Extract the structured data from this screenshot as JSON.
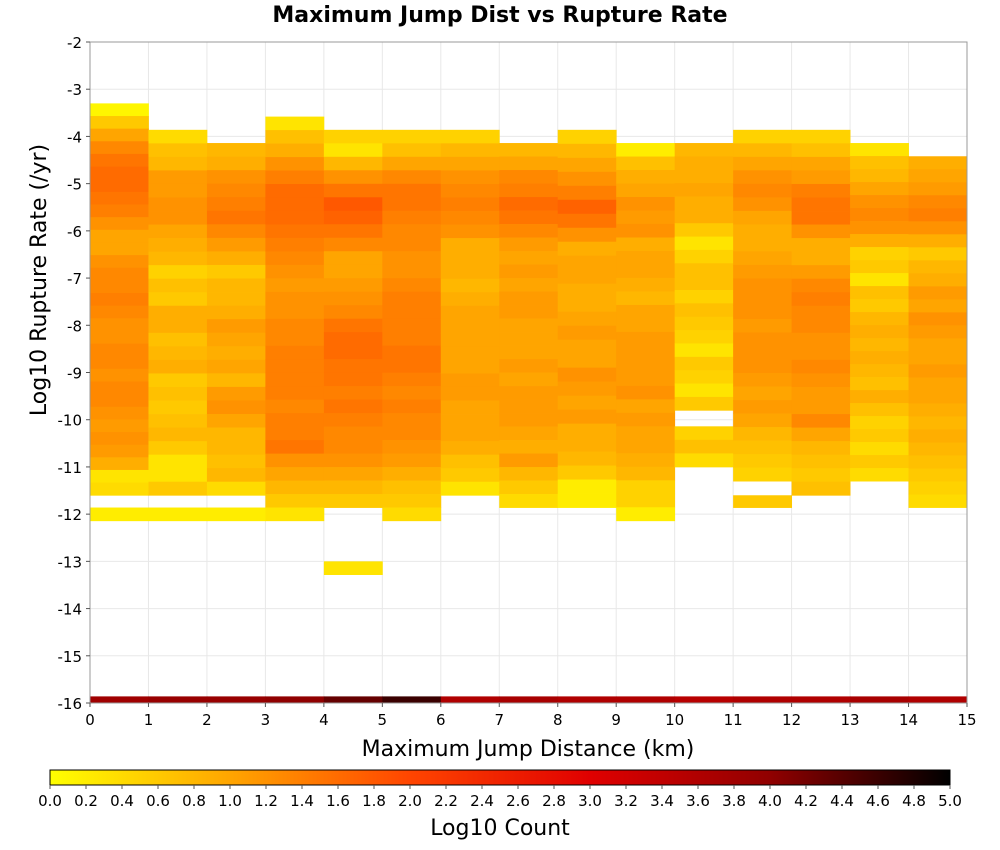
{
  "chart_data": {
    "type": "heatmap",
    "title": "Maximum Jump Dist vs Rupture Rate",
    "xlabel": "Maximum Jump Distance (km)",
    "ylabel": "Log10 Rupture Rate (/yr)",
    "xlim": [
      0,
      15
    ],
    "ylim": [
      -16,
      -2
    ],
    "x_ticks": [
      "0",
      "1",
      "2",
      "3",
      "4",
      "5",
      "6",
      "7",
      "8",
      "9",
      "10",
      "11",
      "12",
      "13",
      "14",
      "15"
    ],
    "y_ticks": [
      "-2",
      "-3",
      "-4",
      "-5",
      "-6",
      "-7",
      "-8",
      "-9",
      "-10",
      "-11",
      "-12",
      "-13",
      "-14",
      "-15",
      "-16"
    ],
    "grid": true,
    "x_bin_width": 1,
    "y_bin_width": 0.28,
    "colorbar": {
      "label": "Log10 Count",
      "range": [
        0,
        5
      ],
      "ticks": [
        "0.0",
        "0.2",
        "0.4",
        "0.6",
        "0.8",
        "1.0",
        "1.2",
        "1.4",
        "1.6",
        "1.8",
        "2.0",
        "2.2",
        "2.4",
        "2.6",
        "2.8",
        "3.0",
        "3.2",
        "3.4",
        "3.6",
        "3.8",
        "4.0",
        "4.2",
        "4.4",
        "4.6",
        "4.8",
        "5.0"
      ],
      "colors": [
        "#ffff00",
        "#ffa500",
        "#ff4500",
        "#e00000",
        "#900000",
        "#000000"
      ],
      "position": "bottom"
    },
    "columns": [
      {
        "x": 0,
        "y_top": -3.3,
        "y_bottom": -11.6,
        "values": [
          0.1,
          0.6,
          1.0,
          1.3,
          1.5,
          1.6,
          1.6,
          1.5,
          1.4,
          1.2,
          1.0,
          1.0,
          1.2,
          1.3,
          1.3,
          1.4,
          1.3,
          1.2,
          1.2,
          1.3,
          1.3,
          1.2,
          1.3,
          1.3,
          1.2,
          1.1,
          1.2,
          1.1,
          0.9,
          0.3,
          0.4
        ]
      },
      {
        "x": 0,
        "y_top": -11.86,
        "y_bottom": -12.14,
        "values": [
          0.2
        ]
      },
      {
        "x": 1,
        "y_top": -3.86,
        "y_bottom": -11.6,
        "values": [
          0.4,
          0.7,
          0.8,
          1.1,
          1.1,
          1.2,
          1.2,
          1.0,
          0.9,
          0.8,
          0.5,
          0.7,
          0.6,
          0.9,
          0.9,
          0.7,
          0.8,
          0.9,
          0.6,
          0.7,
          0.6,
          0.7,
          0.8,
          0.6,
          0.3,
          0.3,
          0.6
        ]
      },
      {
        "x": 1,
        "y_top": -11.86,
        "y_bottom": -12.14,
        "values": [
          0.2
        ]
      },
      {
        "x": 2,
        "y_top": -4.14,
        "y_bottom": -11.6,
        "values": [
          0.8,
          0.9,
          1.2,
          1.3,
          1.4,
          1.5,
          1.3,
          1.1,
          0.9,
          0.6,
          0.8,
          0.8,
          0.9,
          1.1,
          1.0,
          0.9,
          1.0,
          0.8,
          1.1,
          1.2,
          1.0,
          0.8,
          0.8,
          0.7,
          0.8,
          0.4
        ]
      },
      {
        "x": 2,
        "y_top": -11.86,
        "y_bottom": -12.14,
        "values": [
          0.2
        ]
      },
      {
        "x": 3,
        "y_top": -3.58,
        "y_bottom": -11.86,
        "values": [
          0.3,
          0.7,
          0.9,
          1.2,
          1.4,
          1.6,
          1.6,
          1.6,
          1.5,
          1.4,
          1.3,
          1.2,
          1.1,
          1.2,
          1.2,
          1.3,
          1.3,
          1.4,
          1.4,
          1.4,
          1.4,
          1.3,
          1.4,
          1.4,
          1.5,
          1.2,
          1.0,
          0.8,
          0.6
        ]
      },
      {
        "x": 3,
        "y_top": -11.86,
        "y_bottom": -12.14,
        "values": [
          0.3
        ]
      },
      {
        "x": 4,
        "y_top": -3.86,
        "y_bottom": -11.86,
        "values": [
          0.5,
          0.3,
          0.8,
          1.2,
          1.5,
          1.8,
          1.7,
          1.5,
          1.3,
          1.0,
          1.0,
          1.1,
          1.2,
          1.3,
          1.5,
          1.6,
          1.6,
          1.5,
          1.5,
          1.4,
          1.5,
          1.4,
          1.3,
          1.3,
          1.2,
          1.0,
          0.8,
          0.6
        ]
      },
      {
        "x": 4,
        "y_top": -13.0,
        "y_bottom": -13.28,
        "values": [
          0.3
        ]
      },
      {
        "x": 5,
        "y_top": -3.86,
        "y_bottom": -11.86,
        "values": [
          0.5,
          0.7,
          1.0,
          1.3,
          1.5,
          1.5,
          1.4,
          1.3,
          1.3,
          1.2,
          1.2,
          1.3,
          1.4,
          1.4,
          1.4,
          1.4,
          1.5,
          1.5,
          1.4,
          1.3,
          1.4,
          1.3,
          1.3,
          1.2,
          1.1,
          0.9,
          0.7,
          0.6
        ]
      },
      {
        "x": 5,
        "y_top": -11.86,
        "y_bottom": -12.14,
        "values": [
          0.4
        ]
      },
      {
        "x": 6,
        "y_top": -3.86,
        "y_bottom": -11.6,
        "values": [
          0.5,
          0.8,
          1.0,
          1.2,
          1.3,
          1.4,
          1.3,
          1.2,
          0.9,
          0.9,
          0.9,
          0.8,
          0.9,
          1.0,
          1.0,
          1.0,
          1.0,
          1.0,
          1.1,
          1.1,
          1.0,
          1.0,
          1.0,
          0.9,
          0.7,
          0.6,
          0.3
        ]
      },
      {
        "x": 7,
        "y_top": -4.14,
        "y_bottom": -11.86,
        "values": [
          0.8,
          1.0,
          1.3,
          1.4,
          1.6,
          1.5,
          1.3,
          1.1,
          1.0,
          1.1,
          1.0,
          1.1,
          1.1,
          1.0,
          1.0,
          1.0,
          1.1,
          1.0,
          1.1,
          1.1,
          1.1,
          1.0,
          0.9,
          1.1,
          0.8,
          0.6,
          0.4
        ]
      },
      {
        "x": 8,
        "y_top": -3.86,
        "y_bottom": -11.86,
        "values": [
          0.5,
          0.8,
          1.0,
          1.2,
          1.4,
          1.7,
          1.5,
          1.2,
          0.9,
          1.0,
          1.0,
          0.9,
          0.9,
          1.0,
          1.1,
          1.0,
          1.0,
          1.2,
          1.1,
          1.0,
          1.1,
          0.9,
          0.9,
          0.8,
          0.6,
          0.2,
          0.2
        ]
      },
      {
        "x": 9,
        "y_top": -4.14,
        "y_bottom": -12.14,
        "values": [
          0.2,
          0.7,
          0.9,
          1.0,
          1.2,
          1.1,
          1.2,
          0.9,
          1.0,
          1.0,
          0.9,
          0.8,
          1.0,
          1.0,
          1.1,
          1.1,
          1.1,
          1.1,
          1.2,
          1.0,
          1.1,
          1.0,
          1.0,
          0.9,
          0.8,
          0.5,
          0.5,
          0.2
        ]
      },
      {
        "x": 10,
        "y_top": -4.14,
        "y_bottom": -9.8,
        "values": [
          0.8,
          0.9,
          0.9,
          1.0,
          0.9,
          0.9,
          0.6,
          0.3,
          0.5,
          0.7,
          0.7,
          0.5,
          0.7,
          0.6,
          0.5,
          0.3,
          0.6,
          0.5,
          0.3,
          0.6
        ]
      },
      {
        "x": 10,
        "y_top": -10.14,
        "y_bottom": -11.0,
        "values": [
          0.5,
          0.7,
          0.4
        ]
      },
      {
        "x": 11,
        "y_top": -3.86,
        "y_bottom": -11.3,
        "values": [
          0.5,
          0.8,
          1.0,
          1.2,
          1.3,
          1.2,
          1.0,
          0.9,
          0.9,
          1.0,
          1.1,
          1.2,
          1.2,
          1.2,
          1.1,
          1.2,
          1.2,
          1.2,
          1.1,
          1.0,
          1.1,
          1.0,
          0.8,
          0.7,
          0.6,
          0.5
        ]
      },
      {
        "x": 11,
        "y_top": -11.6,
        "y_bottom": -11.86,
        "values": [
          0.6
        ]
      },
      {
        "x": 12,
        "y_top": -3.86,
        "y_bottom": -11.6,
        "values": [
          0.5,
          0.7,
          1.0,
          1.1,
          1.4,
          1.5,
          1.5,
          1.2,
          0.9,
          0.9,
          1.1,
          1.3,
          1.4,
          1.3,
          1.3,
          1.2,
          1.2,
          1.3,
          1.2,
          1.1,
          1.1,
          1.3,
          1.0,
          0.8,
          0.7,
          0.6,
          0.7
        ]
      },
      {
        "x": 13,
        "y_top": -4.14,
        "y_bottom": -11.3,
        "values": [
          0.3,
          0.7,
          0.8,
          1.0,
          1.2,
          1.3,
          1.2,
          0.9,
          0.5,
          0.6,
          0.3,
          0.7,
          0.6,
          0.8,
          0.9,
          0.8,
          0.9,
          0.8,
          0.7,
          0.9,
          0.7,
          0.5,
          0.6,
          0.4,
          0.6,
          0.4
        ]
      },
      {
        "x": 14,
        "y_top": -4.42,
        "y_bottom": -11.86,
        "values": [
          0.9,
          1.0,
          1.1,
          1.3,
          1.4,
          1.2,
          0.9,
          0.6,
          0.8,
          0.9,
          1.1,
          1.0,
          1.2,
          1.1,
          1.0,
          1.0,
          1.1,
          1.0,
          1.0,
          0.9,
          0.8,
          0.9,
          0.8,
          0.7,
          0.6,
          0.5,
          0.4
        ]
      }
    ],
    "bottom_row": {
      "y": -16,
      "values": [
        3.8,
        3.9,
        3.9,
        4.0,
        4.3,
        4.6,
        3.6,
        3.7,
        3.6,
        3.6,
        3.5,
        3.6,
        3.6,
        3.7,
        3.6
      ]
    }
  }
}
